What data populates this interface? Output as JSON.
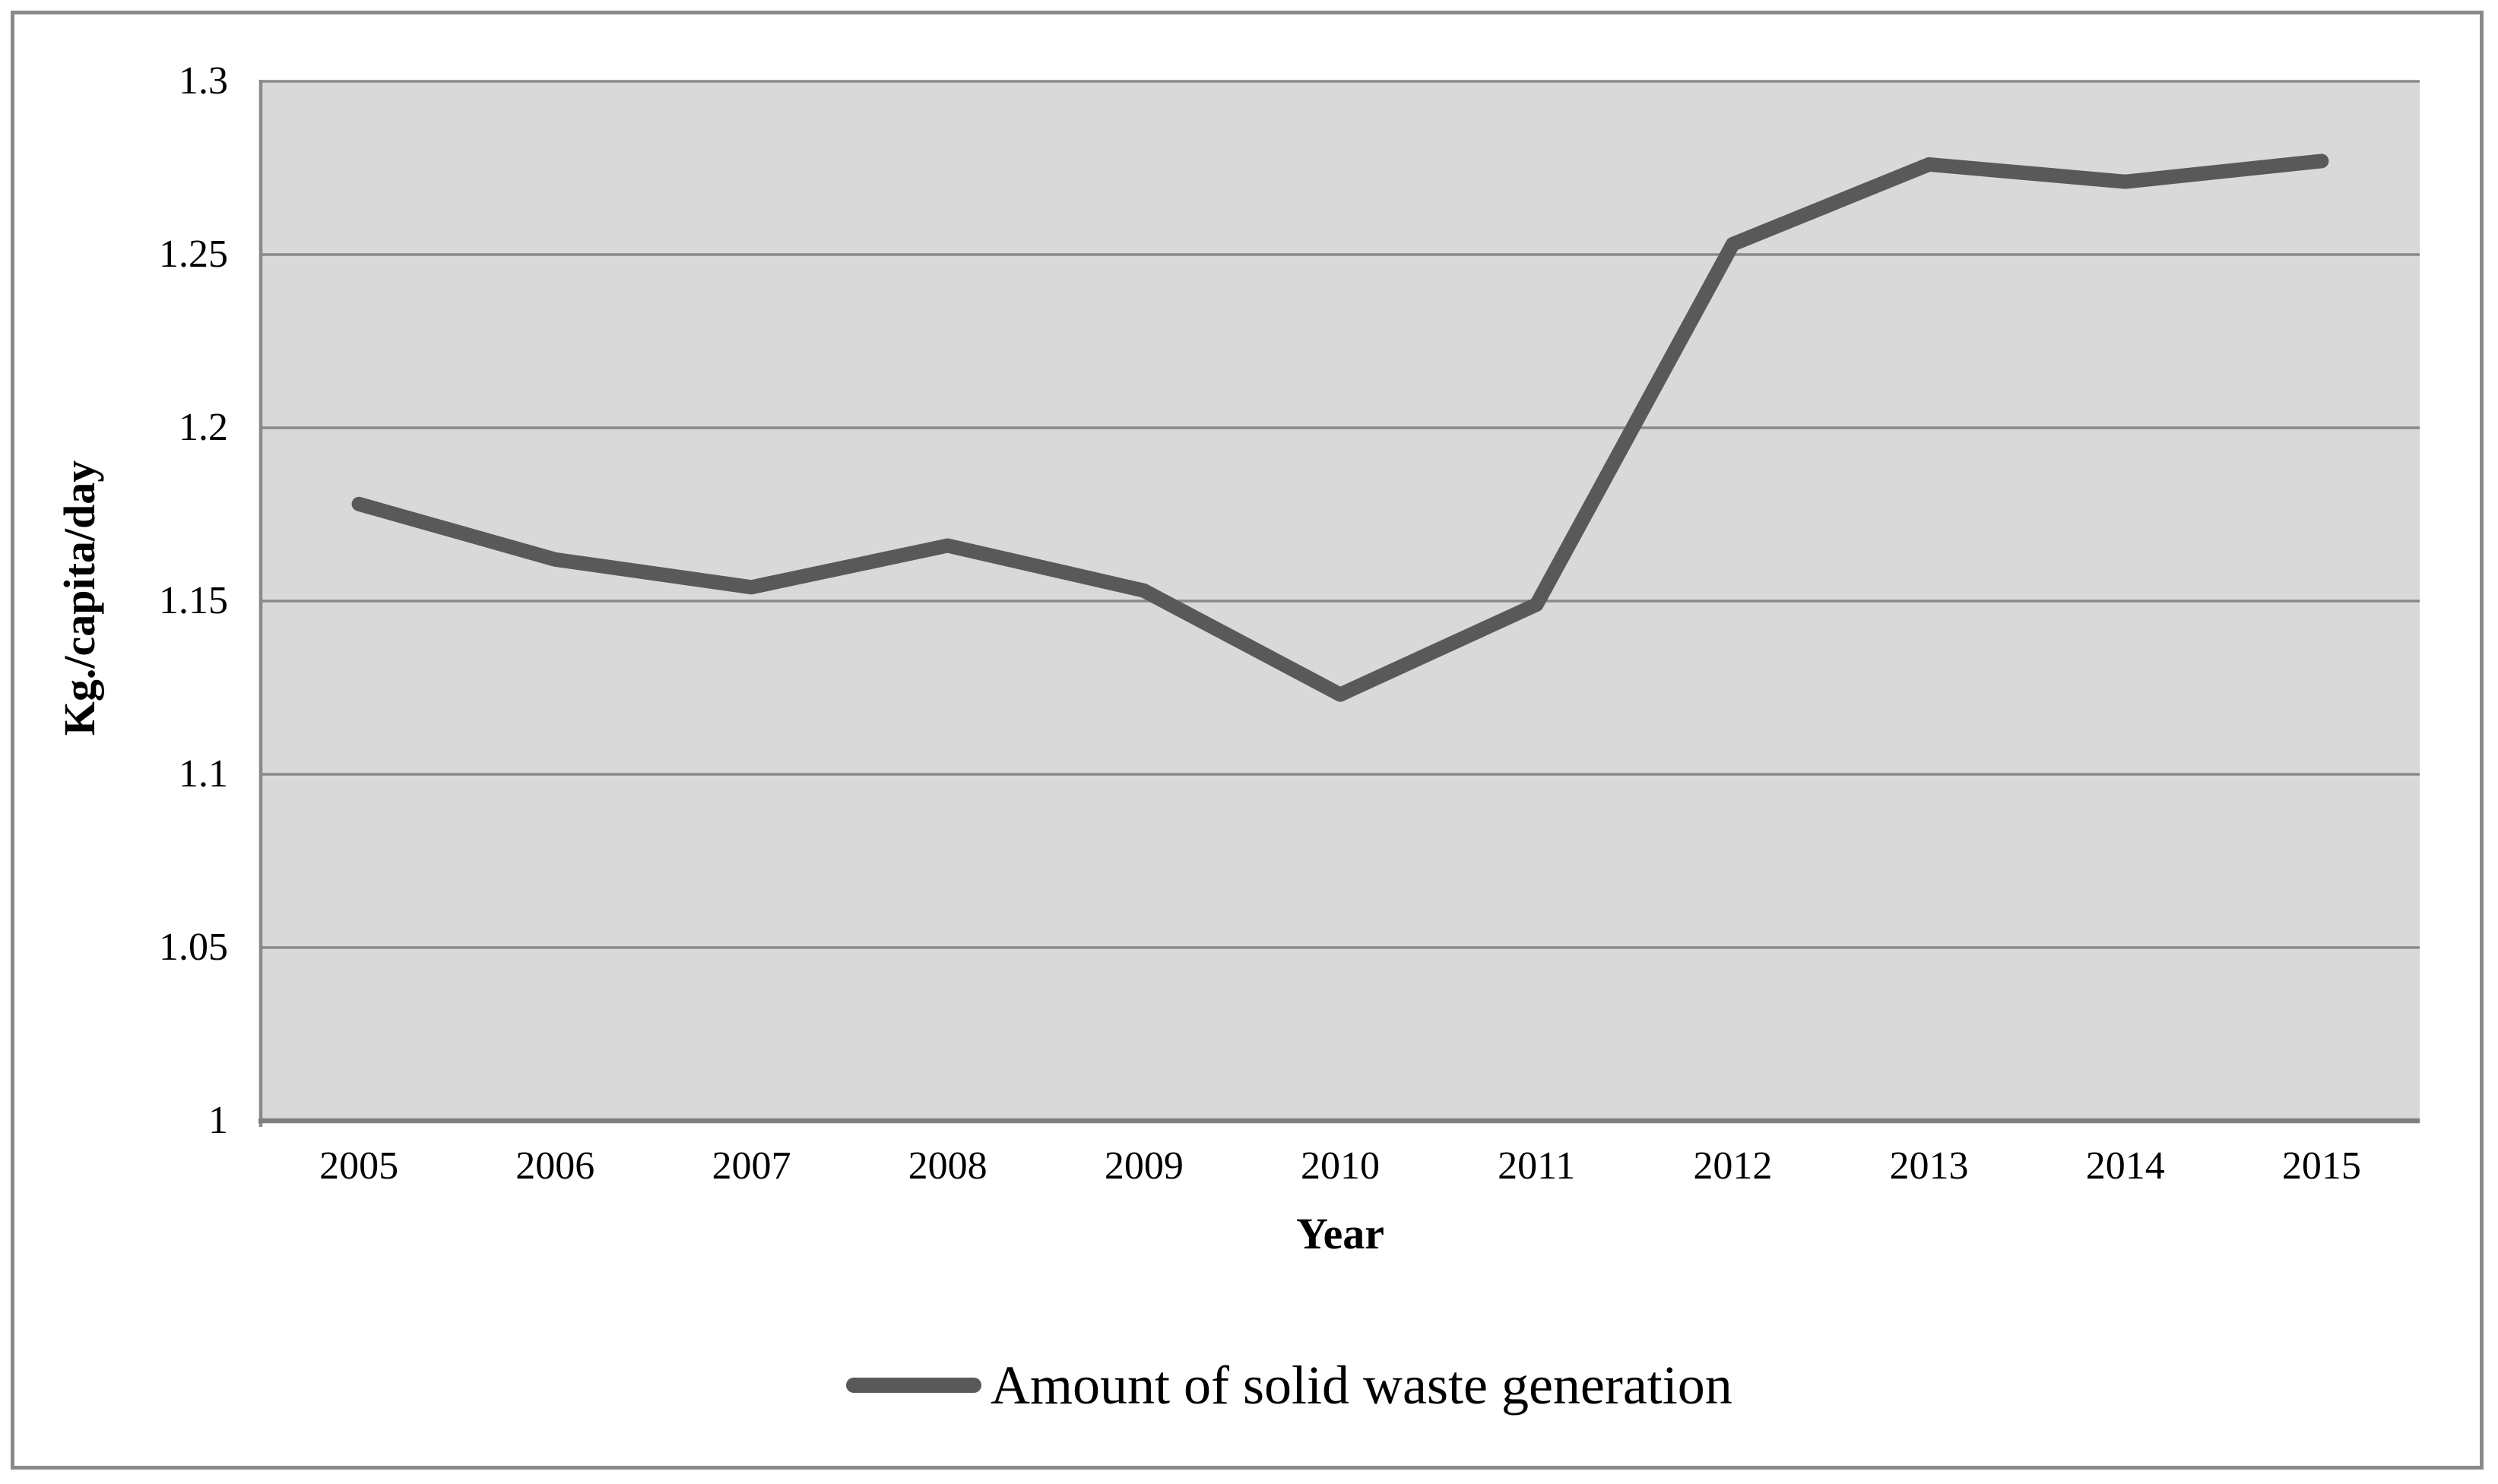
{
  "chart_data": {
    "type": "line",
    "title": "",
    "categories": [
      "2005",
      "2006",
      "2007",
      "2008",
      "2009",
      "2010",
      "2011",
      "2012",
      "2013",
      "2014",
      "2015"
    ],
    "series": [
      {
        "name": "Amount of solid waste generation",
        "values": [
          1.178,
          1.162,
          1.154,
          1.166,
          1.153,
          1.123,
          1.149,
          1.253,
          1.276,
          1.271,
          1.277
        ],
        "color": "#595959"
      }
    ],
    "xlabel": "Year",
    "ylabel": "Kg./capita/day",
    "ylim": [
      1.0,
      1.3
    ],
    "ytick_step": 0.05,
    "ytick_labels": [
      "1",
      "1.05",
      "1.1",
      "1.15",
      "1.2",
      "1.25",
      "1.3"
    ],
    "grid": "horizontal",
    "legend_position": "bottom-center",
    "colors": {
      "plot_background": "#d9d9d9",
      "gridline": "#8a8a8a",
      "axis_line": "#7f7f7f",
      "frame": "#8a8a8a",
      "text": "#000000"
    }
  }
}
